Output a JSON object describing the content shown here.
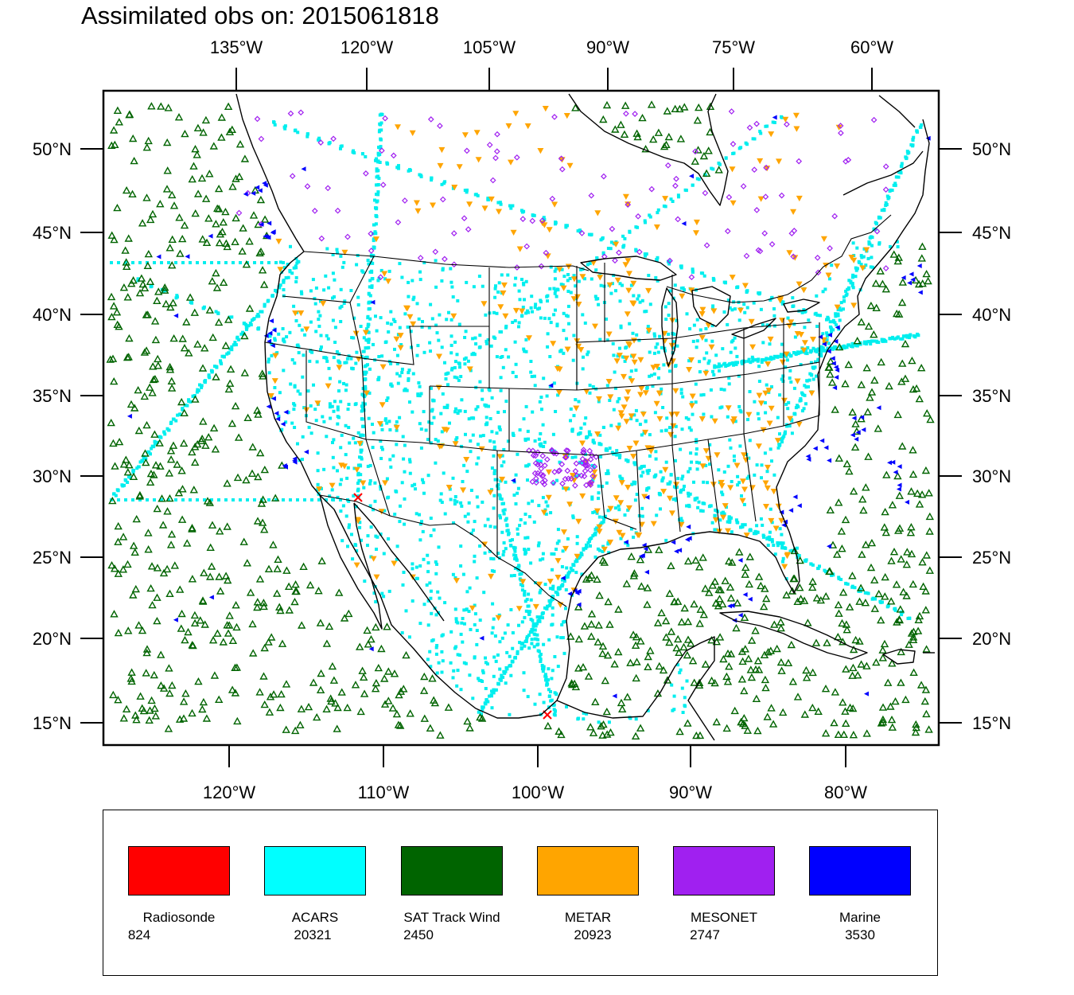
{
  "title": "Assimilated obs on: 2015061818",
  "top_axis_labels": [
    "135°W",
    "120°W",
    "105°W",
    "90°W",
    "75°W",
    "60°W"
  ],
  "bottom_axis_labels": [
    "120°W",
    "110°W",
    "100°W",
    "90°W",
    "80°W"
  ],
  "lat_labels": [
    "50°N",
    "45°N",
    "40°N",
    "35°N",
    "30°N",
    "25°N",
    "20°N",
    "15°N"
  ],
  "legend": [
    {
      "name": "Radiosonde",
      "count": "824",
      "color": "#ff0000"
    },
    {
      "name": "ACARS",
      "count": "20321",
      "color": "#00ffff"
    },
    {
      "name": "SAT Track Wind",
      "count": "2450",
      "color": "#006400"
    },
    {
      "name": "METAR",
      "count": "20923",
      "color": "#ffa500"
    },
    {
      "name": "MESONET",
      "count": "2747",
      "color": "#a020f0"
    },
    {
      "name": "Marine",
      "count": "3530",
      "color": "#0000ff"
    }
  ],
  "colors": {
    "radiosonde": "#ff0000",
    "acars": "#00eeee",
    "sat_track_wind": "#006400",
    "metar": "#ffa500",
    "mesonet": "#a020f0",
    "marine": "#0000ff",
    "coastline": "#000000"
  }
}
